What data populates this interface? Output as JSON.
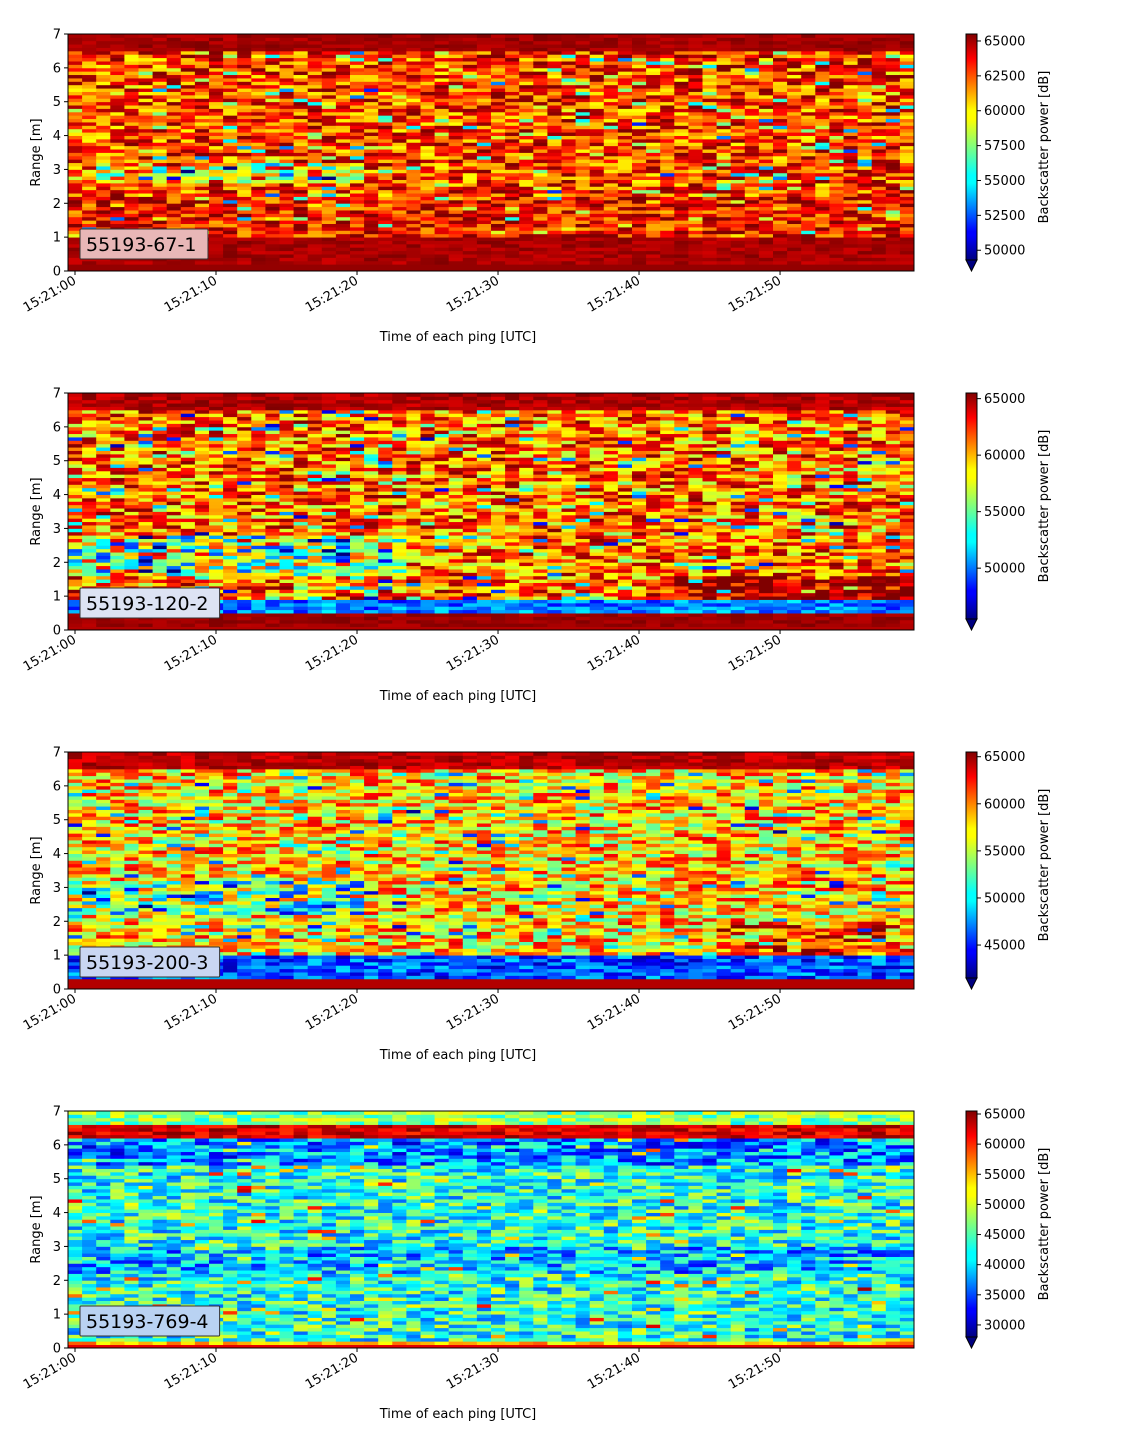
{
  "chart_data": [
    {
      "type": "heatmap",
      "panel_label": "55193-67-1",
      "xlabel": "Time of each ping [UTC]",
      "ylabel": "Range [m]",
      "colorbar_label": "Backscatter power [dB]",
      "x_ticks": [
        "15:21:00",
        "15:21:10",
        "15:21:20",
        "15:21:30",
        "15:21:40",
        "15:21:50"
      ],
      "y_ticks": [
        "0",
        "1",
        "2",
        "3",
        "4",
        "5",
        "6",
        "7"
      ],
      "colorbar_ticks": [
        "50000",
        "52500",
        "55000",
        "57500",
        "60000",
        "62500",
        "65000"
      ],
      "xlim_seconds": [
        0,
        59.5
      ],
      "ylim": [
        0,
        7
      ],
      "clim": [
        49300,
        65500
      ],
      "colormap": "jet",
      "colorbar_extend": "min",
      "pattern": "mostly red/orange; strong bottom band 0.2–1.0 m; top band 6.5–7 m dark red",
      "label_box_color": "#e8b7b7"
    },
    {
      "type": "heatmap",
      "panel_label": "55193-120-2",
      "xlabel": "Time of each ping [UTC]",
      "ylabel": "Range [m]",
      "colorbar_label": "Backscatter power [dB]",
      "x_ticks": [
        "15:21:00",
        "15:21:10",
        "15:21:20",
        "15:21:30",
        "15:21:40",
        "15:21:50"
      ],
      "y_ticks": [
        "0",
        "1",
        "2",
        "3",
        "4",
        "5",
        "6",
        "7"
      ],
      "colorbar_ticks": [
        "50000",
        "55000",
        "60000",
        "65000"
      ],
      "xlim_seconds": [
        0,
        59.5
      ],
      "ylim": [
        0,
        7
      ],
      "clim": [
        45500,
        65500
      ],
      "colormap": "jet",
      "colorbar_extend": "min",
      "pattern": "mixed; blue band near 0.7 m; red bottom 0–0.5 m; top band red",
      "label_box_color": "#dde3f3"
    },
    {
      "type": "heatmap",
      "panel_label": "55193-200-3",
      "xlabel": "Time of each ping [UTC]",
      "ylabel": "Range [m]",
      "colorbar_label": "Backscatter power [dB]",
      "x_ticks": [
        "15:21:00",
        "15:21:10",
        "15:21:20",
        "15:21:30",
        "15:21:40",
        "15:21:50"
      ],
      "y_ticks": [
        "0",
        "1",
        "2",
        "3",
        "4",
        "5",
        "6",
        "7"
      ],
      "colorbar_ticks": [
        "45000",
        "50000",
        "55000",
        "60000",
        "65000"
      ],
      "xlim_seconds": [
        0,
        59.5
      ],
      "ylim": [
        0,
        7
      ],
      "clim": [
        41500,
        65500
      ],
      "colormap": "jet",
      "colorbar_extend": "min",
      "pattern": "cyan/yellow middle; blue bands near 0.8 m and 2.5 m; red bottom 0–0.3 m",
      "label_box_color": "#c9d6f2"
    },
    {
      "type": "heatmap",
      "panel_label": "55193-769-4",
      "xlabel": "Time of each ping [UTC]",
      "ylabel": "Range [m]",
      "colorbar_label": "Backscatter power [dB]",
      "x_ticks": [
        "15:21:00",
        "15:21:10",
        "15:21:20",
        "15:21:30",
        "15:21:40",
        "15:21:50"
      ],
      "y_ticks": [
        "0",
        "1",
        "2",
        "3",
        "4",
        "5",
        "6",
        "7"
      ],
      "colorbar_ticks": [
        "30000",
        "35000",
        "40000",
        "45000",
        "50000",
        "55000",
        "60000",
        "65000"
      ],
      "xlim_seconds": [
        0,
        59.5
      ],
      "ylim": [
        0,
        7
      ],
      "clim": [
        28000,
        65500
      ],
      "colormap": "jet",
      "colorbar_extend": "min",
      "pattern": "mostly blue/cyan; red band near 6.4 m; bright thin band 0.1–0.25 m",
      "label_box_color": "#b9d2f2"
    }
  ]
}
